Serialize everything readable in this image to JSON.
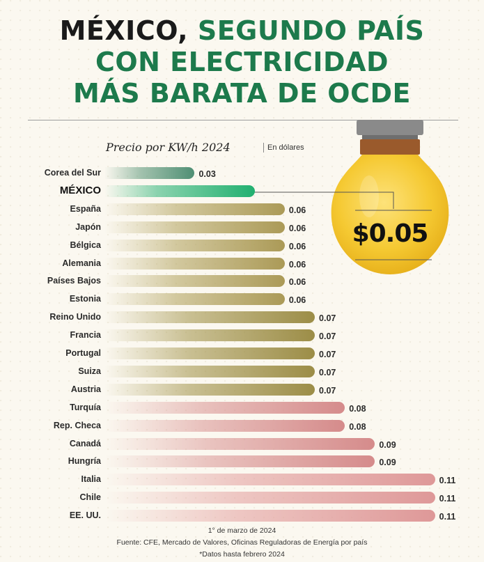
{
  "title": {
    "line1_dark": "MÉXICO,",
    "line1_green": " SEGUNDO PAÍS",
    "line2": "CON ELECTRICIDAD",
    "line3": "MÁS BARATA DE OCDE"
  },
  "colors": {
    "title_green": "#1d7a4c",
    "mexico_bar": "#21b070",
    "bulb_yellow": "#f5c932",
    "low_bars": "#ab9a57",
    "high_bars": "#d58b8b"
  },
  "highlight": {
    "price": "$0.05",
    "icon": "light-bulb-icon"
  },
  "chart_data": {
    "type": "bar",
    "orientation": "horizontal",
    "title": "Precio por KW/h 2024",
    "unit": "En dólares",
    "categories": [
      "Corea del Sur",
      "MÉXICO",
      "España",
      "Japón",
      "Bélgica",
      "Alemania",
      "Países Bajos",
      "Estonia",
      "Reino Unido",
      "Francia",
      "Portugal",
      "Suiza",
      "Austria",
      "Turquía",
      "Rep. Checa",
      "Canadá",
      "Hungría",
      "Italia",
      "Chile",
      "EE. UU."
    ],
    "values": [
      0.03,
      0.05,
      0.06,
      0.06,
      0.06,
      0.06,
      0.06,
      0.06,
      0.07,
      0.07,
      0.07,
      0.07,
      0.07,
      0.08,
      0.08,
      0.09,
      0.09,
      0.11,
      0.11,
      0.11
    ],
    "value_labels": [
      "0.03",
      "",
      "0.06",
      "0.06",
      "0.06",
      "0.06",
      "0.06",
      "0.06",
      "0.07",
      "0.07",
      "0.07",
      "0.07",
      "0.07",
      "0.08",
      "0.08",
      "0.09",
      "0.09",
      "0.11",
      "0.11",
      "0.11"
    ],
    "highlighted": "MÉXICO",
    "grid": false,
    "legend": "none"
  },
  "footer": {
    "date": "1° de marzo de 2024",
    "source": "Fuente: CFE, Mercado de Valores, Oficinas Reguladoras de Energía por país",
    "note": "*Datos hasta febrero 2024"
  }
}
